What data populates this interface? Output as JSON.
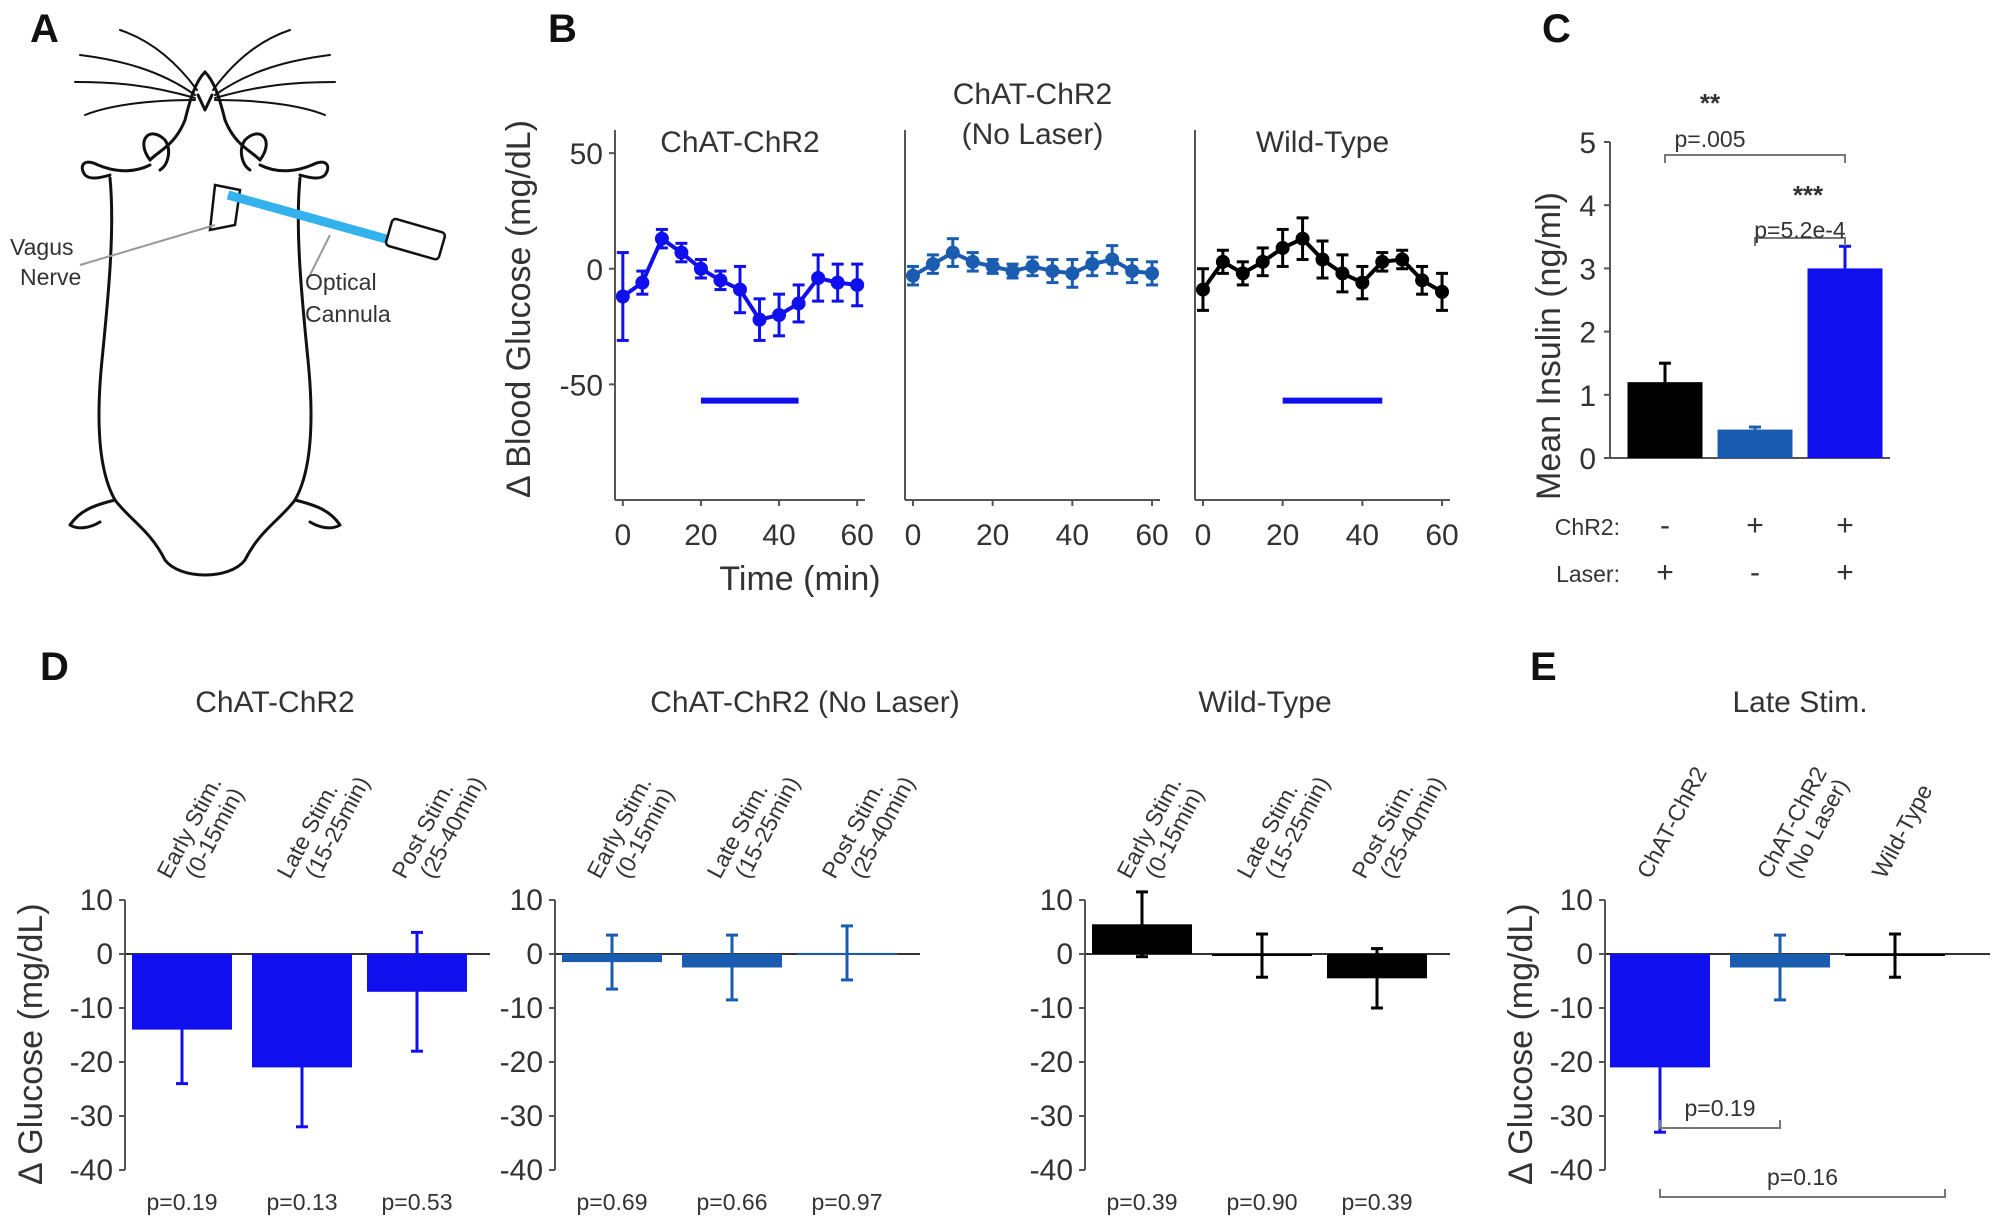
{
  "colors": {
    "chr2": "#1010ee",
    "nolaser": "#1a5cb0",
    "wt": "#000000",
    "cannula": "#33b2ee"
  },
  "panel_a": {
    "letter": "A",
    "labels": {
      "vagus": [
        "Vagus",
        "Nerve"
      ],
      "cannula": [
        "Optical",
        "Cannula"
      ]
    }
  },
  "chart_data": [
    {
      "id": "B",
      "type": "line",
      "title": "",
      "xlabel": "Time (min)",
      "ylabel": "Δ Blood Glucose (mg/dL)",
      "ylim": [
        -100,
        60
      ],
      "xlim": [
        -2,
        62
      ],
      "yticks": [
        50,
        0,
        -50
      ],
      "xticks": [
        0,
        20,
        40,
        60
      ],
      "x": [
        0,
        5,
        10,
        15,
        20,
        25,
        30,
        35,
        40,
        45,
        50,
        55,
        60
      ],
      "stim_bar": [
        20,
        45
      ],
      "stim_bar_y": -57,
      "series": [
        {
          "name": "ChAT-ChR2",
          "color": "chr2",
          "stim": true,
          "values": [
            -12,
            -6,
            13,
            7,
            0,
            -5,
            -9,
            -22,
            -20,
            -15,
            -4,
            -6,
            -7
          ],
          "errors": [
            19,
            5,
            4,
            4,
            4,
            4,
            10,
            9,
            9,
            8,
            10,
            8,
            9
          ]
        },
        {
          "name": "ChAT-ChR2\n(No Laser)",
          "color": "nolaser",
          "stim": false,
          "values": [
            -3,
            2,
            7,
            3,
            1,
            -1,
            1,
            -1,
            -2,
            2,
            4,
            -1,
            -2
          ],
          "errors": [
            4,
            4,
            6,
            4,
            3,
            3,
            4,
            5,
            6,
            5,
            6,
            5,
            5
          ]
        },
        {
          "name": "Wild-Type",
          "color": "wt",
          "stim": true,
          "values": [
            -9,
            3,
            -2,
            3,
            9,
            13,
            4,
            -2,
            -6,
            3,
            4,
            -5,
            -10
          ],
          "errors": [
            9,
            5,
            5,
            6,
            8,
            9,
            8,
            8,
            7,
            4,
            4,
            6,
            8
          ]
        }
      ]
    },
    {
      "id": "C",
      "type": "bar",
      "ylabel": "Mean Insulin (ng/ml)",
      "ylim": [
        0,
        5
      ],
      "yticks": [
        0,
        1,
        2,
        3,
        4,
        5
      ],
      "values": [
        1.2,
        0.45,
        3.0
      ],
      "errors": [
        0.3,
        0.04,
        0.35
      ],
      "colors": [
        "wt",
        "nolaser",
        "chr2"
      ],
      "row_labels": [
        "ChR2:",
        "Laser:"
      ],
      "chr2_row": [
        "-",
        "+",
        "+"
      ],
      "laser_row": [
        "+",
        "-",
        "+"
      ],
      "comparisons": [
        {
          "stars": "**",
          "p": "p=.005",
          "from": 0,
          "to": 2
        },
        {
          "stars": "***",
          "p": "p=5.2e-4",
          "from": 1,
          "to": 2
        }
      ]
    },
    {
      "id": "D",
      "type": "bar",
      "ylabel": "Δ Glucose (mg/dL)",
      "ylim": [
        -40,
        10
      ],
      "yticks": [
        10,
        0,
        -10,
        -20,
        -30,
        -40
      ],
      "categories": [
        [
          "Early Stim.",
          "(0-15min)"
        ],
        [
          "Late Stim.",
          "(15-25min)"
        ],
        [
          "Post Stim.",
          "(25-40min)"
        ]
      ],
      "groups": [
        {
          "title": "ChAT-ChR2",
          "color": "chr2",
          "values": [
            -14,
            -21,
            -7
          ],
          "err_lo": [
            10,
            11,
            11
          ],
          "err_hi": [
            10,
            11,
            11
          ],
          "pvals": [
            "p=0.19",
            "p=0.13",
            "p=0.53"
          ]
        },
        {
          "title": "ChAT-ChR2 (No Laser)",
          "color": "nolaser",
          "values": [
            -1.5,
            -2.5,
            0.2
          ],
          "err_lo": [
            5,
            6,
            5
          ],
          "err_hi": [
            5,
            6,
            5
          ],
          "pvals": [
            "p=0.69",
            "p=0.66",
            "p=0.97"
          ]
        },
        {
          "title": "Wild-Type",
          "color": "wt",
          "values": [
            5.5,
            -0.3,
            -4.5
          ],
          "err_lo": [
            6,
            4,
            5.5
          ],
          "err_hi": [
            6,
            4,
            5.5
          ],
          "pvals": [
            "p=0.39",
            "p=0.90",
            "p=0.39"
          ]
        }
      ]
    },
    {
      "id": "E",
      "type": "bar",
      "title": "Late Stim.",
      "ylabel": "Δ Glucose (mg/dL)",
      "ylim": [
        -40,
        10
      ],
      "yticks": [
        10,
        0,
        -10,
        -20,
        -30,
        -40
      ],
      "categories": [
        [
          "ChAT-ChR2"
        ],
        [
          "ChAT-ChR2",
          "(No Laser)"
        ],
        [
          "Wild-Type"
        ]
      ],
      "values": [
        -21,
        -2.5,
        -0.3
      ],
      "err_lo": [
        12,
        6,
        4
      ],
      "err_hi": [
        0,
        6,
        4
      ],
      "colors": [
        "chr2",
        "nolaser",
        "wt"
      ],
      "comparisons": [
        {
          "p": "p=0.19",
          "from": 0,
          "to": 1
        },
        {
          "p": "p=0.16",
          "from": 0,
          "to": 2
        }
      ]
    }
  ]
}
